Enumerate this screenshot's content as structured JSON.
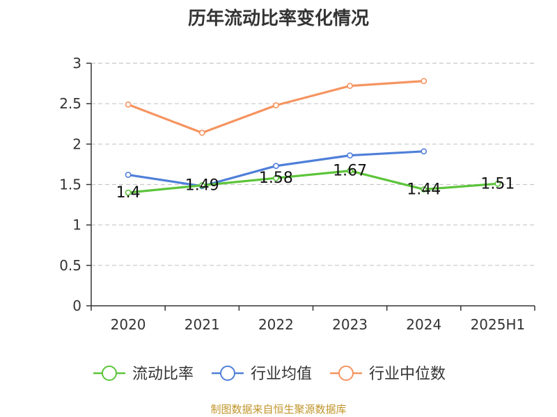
{
  "chart_data": {
    "type": "line",
    "title": "历年流动比率变化情况",
    "categories": [
      "2020",
      "2021",
      "2022",
      "2023",
      "2024",
      "2025H1"
    ],
    "ylim": [
      0,
      3
    ],
    "yticks": [
      "0",
      "0.5",
      "1",
      "1.5",
      "2",
      "2.5",
      "3"
    ],
    "grid": true,
    "legend_position": "bottom",
    "series": [
      {
        "name": "流动比率",
        "color": "#5cc43a",
        "values": [
          1.4,
          1.49,
          1.58,
          1.67,
          1.44,
          1.51
        ],
        "labels": [
          "1.4",
          "1.49",
          "1.58",
          "1.67",
          "1.44",
          "1.51"
        ]
      },
      {
        "name": "行业均值",
        "color": "#4f7fd8",
        "values": [
          1.62,
          1.48,
          1.73,
          1.86,
          1.91,
          null
        ]
      },
      {
        "name": "行业中位数",
        "color": "#f59460",
        "values": [
          2.49,
          2.14,
          2.48,
          2.72,
          2.78,
          null
        ]
      }
    ]
  },
  "footer": "制图数据来自恒生聚源数据库"
}
